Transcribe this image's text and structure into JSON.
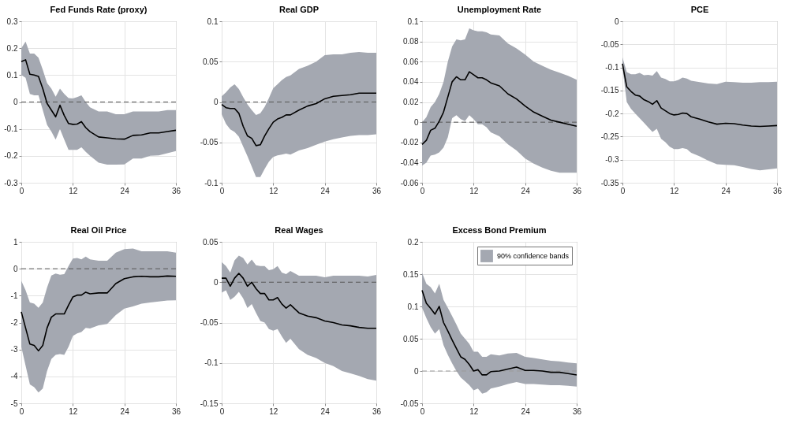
{
  "chart_data": [
    {
      "type": "line",
      "title": "Fed Funds Rate (proxy)",
      "x": [
        0,
        1,
        2,
        3,
        4,
        5,
        6,
        7,
        8,
        9,
        10,
        11,
        12,
        13,
        14,
        15,
        16,
        18,
        20,
        22,
        24,
        26,
        28,
        30,
        32,
        34,
        36
      ],
      "xlim": [
        0,
        36
      ],
      "xticks": [
        0,
        12,
        24,
        36
      ],
      "ylim": [
        -0.3,
        0.3
      ],
      "yticks": [
        -0.3,
        -0.2,
        -0.1,
        0,
        0.1,
        0.2,
        0.3
      ],
      "grid": true,
      "series": [
        {
          "color": "#000000",
          "values": [
            0.15,
            0.157,
            0.103,
            0.1,
            0.095,
            0.05,
            -0.005,
            -0.03,
            -0.055,
            -0.012,
            -0.05,
            -0.08,
            -0.083,
            -0.082,
            -0.073,
            -0.095,
            -0.11,
            -0.13,
            -0.133,
            -0.137,
            -0.138,
            -0.124,
            -0.122,
            -0.115,
            -0.115,
            -0.11,
            -0.105
          ],
          "lower": [
            0.1,
            0.09,
            0.03,
            0.025,
            0.025,
            -0.03,
            -0.085,
            -0.11,
            -0.14,
            -0.1,
            -0.14,
            -0.178,
            -0.178,
            -0.178,
            -0.168,
            -0.185,
            -0.2,
            -0.225,
            -0.233,
            -0.233,
            -0.232,
            -0.21,
            -0.21,
            -0.2,
            -0.198,
            -0.19,
            -0.182
          ],
          "upper": [
            0.2,
            0.225,
            0.18,
            0.18,
            0.165,
            0.12,
            0.07,
            0.05,
            0.02,
            0.05,
            0.03,
            0.015,
            0.013,
            0.018,
            0.025,
            0.0,
            -0.02,
            -0.035,
            -0.035,
            -0.045,
            -0.045,
            -0.035,
            -0.035,
            -0.035,
            -0.035,
            -0.03,
            -0.03
          ]
        }
      ],
      "ref_lines": [
        {
          "axis": "y",
          "value": 0,
          "color": "#555555",
          "line_style": "dashed"
        }
      ]
    },
    {
      "type": "line",
      "title": "Real GDP",
      "x": [
        0,
        1,
        2,
        3,
        4,
        5,
        6,
        7,
        8,
        9,
        10,
        11,
        12,
        13,
        14,
        15,
        16,
        18,
        20,
        22,
        24,
        26,
        28,
        30,
        32,
        34,
        36
      ],
      "xlim": [
        0,
        36
      ],
      "xticks": [
        0,
        12,
        24,
        36
      ],
      "ylim": [
        -0.1,
        0.1
      ],
      "yticks": [
        -0.1,
        -0.05,
        0,
        0.05,
        0.1
      ],
      "grid": true,
      "series": [
        {
          "color": "#000000",
          "values": [
            -0.003,
            -0.007,
            -0.008,
            -0.008,
            -0.014,
            -0.03,
            -0.042,
            -0.045,
            -0.054,
            -0.053,
            -0.042,
            -0.033,
            -0.025,
            -0.021,
            -0.019,
            -0.016,
            -0.016,
            -0.01,
            -0.005,
            -0.002,
            0.004,
            0.007,
            0.008,
            0.009,
            0.011,
            0.011,
            0.011
          ],
          "lower": [
            -0.015,
            -0.027,
            -0.034,
            -0.037,
            -0.043,
            -0.055,
            -0.067,
            -0.08,
            -0.093,
            -0.093,
            -0.083,
            -0.074,
            -0.068,
            -0.066,
            -0.065,
            -0.064,
            -0.065,
            -0.06,
            -0.057,
            -0.053,
            -0.049,
            -0.046,
            -0.044,
            -0.042,
            -0.041,
            -0.041,
            -0.04
          ],
          "upper": [
            0.007,
            0.012,
            0.018,
            0.022,
            0.016,
            0.006,
            -0.003,
            -0.01,
            -0.016,
            -0.014,
            -0.006,
            0.005,
            0.017,
            0.022,
            0.027,
            0.031,
            0.033,
            0.041,
            0.045,
            0.05,
            0.058,
            0.059,
            0.059,
            0.061,
            0.062,
            0.061,
            0.061
          ]
        }
      ],
      "ref_lines": [
        {
          "axis": "y",
          "value": 0,
          "color": "#555555",
          "line_style": "dashed"
        }
      ]
    },
    {
      "type": "line",
      "title": "Unemployment Rate",
      "x": [
        0,
        1,
        2,
        3,
        4,
        5,
        6,
        7,
        8,
        9,
        10,
        11,
        12,
        13,
        14,
        15,
        16,
        18,
        20,
        22,
        24,
        26,
        28,
        30,
        32,
        34,
        36
      ],
      "xlim": [
        0,
        36
      ],
      "xticks": [
        0,
        12,
        24,
        36
      ],
      "ylim": [
        -0.06,
        0.1
      ],
      "yticks": [
        -0.06,
        -0.04,
        -0.02,
        0,
        0.02,
        0.04,
        0.06,
        0.08,
        0.1
      ],
      "grid": true,
      "series": [
        {
          "color": "#000000",
          "values": [
            -0.022,
            -0.018,
            -0.008,
            -0.006,
            0.001,
            0.01,
            0.025,
            0.04,
            0.045,
            0.042,
            0.042,
            0.05,
            0.047,
            0.044,
            0.044,
            0.042,
            0.039,
            0.036,
            0.028,
            0.023,
            0.016,
            0.01,
            0.006,
            0.002,
            0.0,
            -0.002,
            -0.004
          ],
          "lower": [
            -0.043,
            -0.04,
            -0.033,
            -0.032,
            -0.03,
            -0.025,
            -0.015,
            0.004,
            0.007,
            0.003,
            0.001,
            0.007,
            0.003,
            -0.002,
            -0.002,
            -0.005,
            -0.01,
            -0.014,
            -0.022,
            -0.028,
            -0.036,
            -0.041,
            -0.045,
            -0.048,
            -0.05,
            -0.05,
            -0.05
          ],
          "upper": [
            0.0,
            0.005,
            0.015,
            0.02,
            0.028,
            0.04,
            0.06,
            0.075,
            0.082,
            0.081,
            0.082,
            0.093,
            0.091,
            0.09,
            0.09,
            0.089,
            0.087,
            0.086,
            0.078,
            0.073,
            0.067,
            0.06,
            0.056,
            0.052,
            0.049,
            0.046,
            0.042
          ]
        }
      ],
      "ref_lines": [
        {
          "axis": "y",
          "value": 0,
          "color": "#555555",
          "line_style": "dashed"
        }
      ]
    },
    {
      "type": "line",
      "title": "PCE",
      "x": [
        0,
        1,
        2,
        3,
        4,
        5,
        6,
        7,
        8,
        9,
        10,
        11,
        12,
        13,
        14,
        15,
        16,
        18,
        20,
        22,
        24,
        26,
        28,
        30,
        32,
        34,
        36
      ],
      "xlim": [
        0,
        36
      ],
      "xticks": [
        0,
        12,
        24,
        36
      ],
      "ylim": [
        -0.35,
        0
      ],
      "yticks": [
        -0.35,
        -0.3,
        -0.25,
        -0.2,
        -0.15,
        -0.1,
        -0.05,
        0
      ],
      "grid": true,
      "series": [
        {
          "color": "#000000",
          "values": [
            -0.092,
            -0.142,
            -0.152,
            -0.16,
            -0.162,
            -0.17,
            -0.174,
            -0.18,
            -0.172,
            -0.188,
            -0.194,
            -0.2,
            -0.203,
            -0.202,
            -0.199,
            -0.2,
            -0.207,
            -0.212,
            -0.218,
            -0.223,
            -0.221,
            -0.222,
            -0.225,
            -0.227,
            -0.228,
            -0.227,
            -0.226
          ],
          "lower": [
            -0.1,
            -0.175,
            -0.19,
            -0.2,
            -0.21,
            -0.22,
            -0.23,
            -0.24,
            -0.233,
            -0.255,
            -0.262,
            -0.272,
            -0.277,
            -0.277,
            -0.275,
            -0.277,
            -0.285,
            -0.293,
            -0.302,
            -0.31,
            -0.311,
            -0.312,
            -0.316,
            -0.32,
            -0.323,
            -0.321,
            -0.319
          ],
          "upper": [
            -0.078,
            -0.11,
            -0.115,
            -0.115,
            -0.112,
            -0.117,
            -0.116,
            -0.118,
            -0.108,
            -0.122,
            -0.125,
            -0.13,
            -0.13,
            -0.127,
            -0.122,
            -0.124,
            -0.129,
            -0.132,
            -0.135,
            -0.136,
            -0.131,
            -0.132,
            -0.133,
            -0.133,
            -0.132,
            -0.132,
            -0.131
          ]
        }
      ]
    },
    {
      "type": "line",
      "title": "Real Oil Price",
      "x": [
        0,
        1,
        2,
        3,
        4,
        5,
        6,
        7,
        8,
        9,
        10,
        11,
        12,
        13,
        14,
        15,
        16,
        18,
        20,
        22,
        24,
        26,
        28,
        30,
        32,
        34,
        36
      ],
      "xlim": [
        0,
        36
      ],
      "xticks": [
        0,
        12,
        24,
        36
      ],
      "ylim": [
        -5,
        1
      ],
      "yticks": [
        -5,
        -4,
        -3,
        -2,
        -1,
        0,
        1
      ],
      "grid": true,
      "series": [
        {
          "color": "#000000",
          "values": [
            -1.6,
            -2.2,
            -2.8,
            -2.85,
            -3.05,
            -2.85,
            -2.2,
            -1.8,
            -1.68,
            -1.68,
            -1.68,
            -1.35,
            -1.05,
            -0.98,
            -0.98,
            -0.87,
            -0.93,
            -0.9,
            -0.9,
            -0.55,
            -0.37,
            -0.3,
            -0.28,
            -0.3,
            -0.3,
            -0.27,
            -0.28
          ],
          "lower": [
            -2.9,
            -3.6,
            -4.3,
            -4.4,
            -4.6,
            -4.45,
            -3.8,
            -3.35,
            -3.2,
            -3.17,
            -3.2,
            -2.9,
            -2.5,
            -2.4,
            -2.35,
            -2.2,
            -2.22,
            -2.1,
            -2.05,
            -1.72,
            -1.48,
            -1.4,
            -1.3,
            -1.25,
            -1.22,
            -1.18,
            -1.17
          ],
          "upper": [
            -0.45,
            -0.8,
            -1.25,
            -1.3,
            -1.45,
            -1.25,
            -0.7,
            -0.25,
            -0.18,
            -0.22,
            -0.2,
            0.1,
            0.38,
            0.4,
            0.35,
            0.45,
            0.35,
            0.3,
            0.3,
            0.6,
            0.73,
            0.75,
            0.65,
            0.65,
            0.65,
            0.65,
            0.6
          ]
        }
      ],
      "ref_lines": [
        {
          "axis": "y",
          "value": 0,
          "color": "#555555",
          "line_style": "dashed"
        }
      ]
    },
    {
      "type": "line",
      "title": "Real Wages",
      "x": [
        0,
        1,
        2,
        3,
        4,
        5,
        6,
        7,
        8,
        9,
        10,
        11,
        12,
        13,
        14,
        15,
        16,
        18,
        20,
        22,
        24,
        26,
        28,
        30,
        32,
        34,
        36
      ],
      "xlim": [
        0,
        36
      ],
      "xticks": [
        0,
        12,
        24,
        36
      ],
      "ylim": [
        -0.15,
        0.05
      ],
      "yticks": [
        -0.15,
        -0.1,
        -0.05,
        0,
        0.05
      ],
      "grid": true,
      "series": [
        {
          "color": "#000000",
          "values": [
            0.005,
            0.005,
            -0.005,
            0.005,
            0.011,
            0.005,
            -0.005,
            0.0,
            -0.008,
            -0.014,
            -0.014,
            -0.022,
            -0.022,
            -0.019,
            -0.027,
            -0.032,
            -0.028,
            -0.038,
            -0.042,
            -0.044,
            -0.048,
            -0.05,
            -0.053,
            -0.054,
            -0.056,
            -0.057,
            -0.057
          ],
          "lower": [
            -0.013,
            -0.01,
            -0.022,
            -0.018,
            -0.012,
            -0.02,
            -0.032,
            -0.027,
            -0.038,
            -0.048,
            -0.05,
            -0.058,
            -0.06,
            -0.058,
            -0.067,
            -0.075,
            -0.07,
            -0.083,
            -0.09,
            -0.094,
            -0.1,
            -0.104,
            -0.11,
            -0.113,
            -0.116,
            -0.12,
            -0.122
          ],
          "upper": [
            0.025,
            0.02,
            0.012,
            0.027,
            0.033,
            0.03,
            0.022,
            0.028,
            0.021,
            0.02,
            0.02,
            0.015,
            0.016,
            0.02,
            0.012,
            0.01,
            0.014,
            0.008,
            0.008,
            0.008,
            0.006,
            0.008,
            0.008,
            0.008,
            0.008,
            0.007,
            0.009
          ]
        }
      ],
      "ref_lines": [
        {
          "axis": "y",
          "value": 0,
          "color": "#555555",
          "line_style": "dashed"
        }
      ]
    },
    {
      "type": "line",
      "title": "Excess Bond Premium",
      "x": [
        0,
        1,
        2,
        3,
        4,
        5,
        6,
        7,
        8,
        9,
        10,
        11,
        12,
        13,
        14,
        15,
        16,
        18,
        20,
        22,
        24,
        26,
        28,
        30,
        32,
        34,
        36
      ],
      "xlim": [
        0,
        36
      ],
      "xticks": [
        0,
        12,
        24,
        36
      ],
      "ylim": [
        -0.05,
        0.2
      ],
      "yticks": [
        -0.05,
        0,
        0.05,
        0.1,
        0.15,
        0.2
      ],
      "grid": true,
      "series": [
        {
          "color": "#000000",
          "values": [
            0.125,
            0.105,
            0.097,
            0.088,
            0.1,
            0.075,
            0.062,
            0.048,
            0.035,
            0.022,
            0.018,
            0.01,
            0.0,
            0.002,
            -0.006,
            -0.006,
            -0.001,
            0.0,
            0.003,
            0.006,
            0.001,
            0.001,
            0.0,
            -0.002,
            -0.002,
            -0.004,
            -0.006
          ],
          "lower": [
            0.098,
            0.082,
            0.068,
            0.058,
            0.065,
            0.04,
            0.025,
            0.012,
            0.0,
            -0.01,
            -0.016,
            -0.022,
            -0.03,
            -0.027,
            -0.035,
            -0.033,
            -0.027,
            -0.024,
            -0.02,
            -0.017,
            -0.02,
            -0.02,
            -0.021,
            -0.022,
            -0.022,
            -0.023,
            -0.024
          ],
          "upper": [
            0.152,
            0.135,
            0.13,
            0.12,
            0.135,
            0.11,
            0.098,
            0.085,
            0.072,
            0.058,
            0.05,
            0.042,
            0.03,
            0.03,
            0.022,
            0.022,
            0.026,
            0.024,
            0.027,
            0.028,
            0.022,
            0.02,
            0.018,
            0.016,
            0.015,
            0.013,
            0.012
          ]
        }
      ],
      "ref_lines": [
        {
          "axis": "y",
          "value": 0,
          "color": "#999999",
          "line_style": "dashed"
        }
      ],
      "annotations": [
        "90% confidence bands"
      ]
    }
  ]
}
